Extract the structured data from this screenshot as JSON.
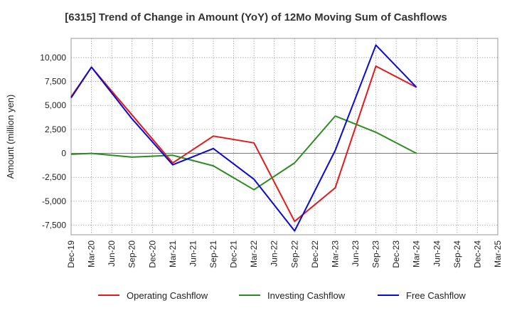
{
  "chart_data": {
    "type": "line",
    "title": "[6315]  Trend of Change in Amount (YoY) of 12Mo Moving Sum of Cashflows",
    "xlabel": "",
    "ylabel": "Amount (million yen)",
    "ylim": [
      -8500,
      12000
    ],
    "yticks": [
      -7500,
      -5000,
      -2500,
      0,
      2500,
      5000,
      7500,
      10000
    ],
    "ytick_labels": [
      "-7,500",
      "-5,000",
      "-2,500",
      "0",
      "2,500",
      "5,000",
      "7,500",
      "10,000"
    ],
    "categories": [
      "Dec-19",
      "Mar-20",
      "Jun-20",
      "Sep-20",
      "Dec-20",
      "Mar-21",
      "Jun-21",
      "Sep-21",
      "Dec-21",
      "Mar-22",
      "Jun-22",
      "Sep-22",
      "Dec-22",
      "Mar-23",
      "Jun-23",
      "Sep-23",
      "Dec-23",
      "Mar-24",
      "Jun-24",
      "Sep-24",
      "Dec-24",
      "Mar-25"
    ],
    "series": [
      {
        "name": "Operating Cashflow",
        "color": "#e31a1c",
        "values": [
          5900,
          9000,
          null,
          4000,
          null,
          -1000,
          null,
          1800,
          null,
          1100,
          null,
          -7100,
          null,
          -3600,
          null,
          9100,
          null,
          6900,
          null,
          null,
          null,
          null
        ]
      },
      {
        "name": "Investing Cashflow",
        "color": "#2e8b22",
        "values": [
          -100,
          0,
          null,
          -400,
          null,
          -200,
          null,
          -1300,
          null,
          -3800,
          null,
          -1000,
          null,
          3900,
          null,
          2200,
          null,
          0,
          null,
          null,
          null,
          null
        ]
      },
      {
        "name": "Free Cashflow",
        "color": "#0a0ad4",
        "values": [
          5800,
          9000,
          null,
          3600,
          null,
          -1200,
          null,
          500,
          null,
          -2700,
          null,
          -8100,
          null,
          300,
          null,
          11300,
          null,
          6900,
          null,
          null,
          null,
          null
        ]
      }
    ],
    "grid": true,
    "legend": "bottom"
  }
}
